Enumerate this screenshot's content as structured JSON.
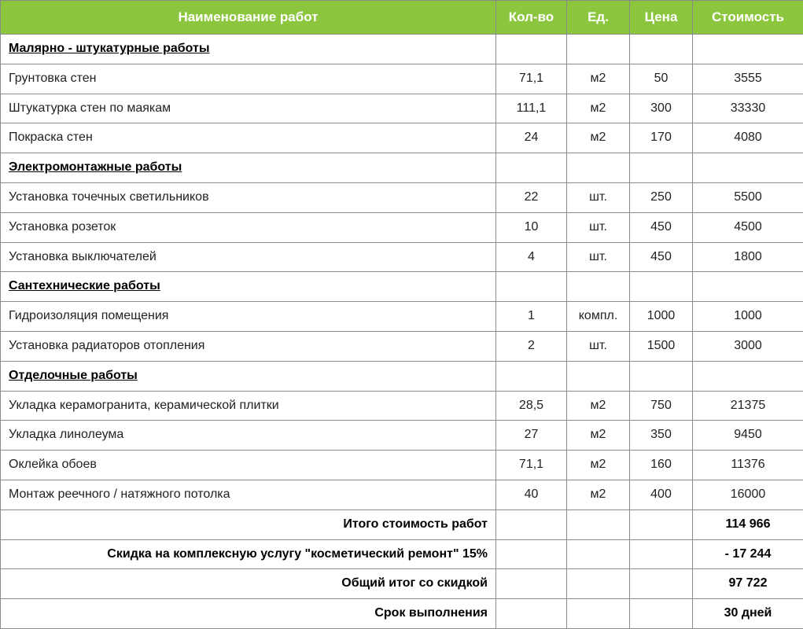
{
  "columns": {
    "name": "Наименование работ",
    "qty": "Кол-во",
    "unit": "Ед.",
    "price": "Цена",
    "cost": "Стоимость"
  },
  "rows": [
    {
      "type": "section",
      "name": "Малярно - штукатурные работы"
    },
    {
      "type": "item",
      "name": "Грунтовка стен",
      "qty": "71,1",
      "unit": "м2",
      "price": "50",
      "cost": "3555"
    },
    {
      "type": "item",
      "name": "Штукатурка стен по маякам",
      "qty": "111,1",
      "unit": "м2",
      "price": "300",
      "cost": "33330"
    },
    {
      "type": "item",
      "name": "Покраска стен",
      "qty": "24",
      "unit": "м2",
      "price": "170",
      "cost": "4080"
    },
    {
      "type": "section",
      "name": "Электромонтажные работы"
    },
    {
      "type": "item",
      "name": "Установка точечных светильников",
      "qty": "22",
      "unit": "шт.",
      "price": "250",
      "cost": "5500"
    },
    {
      "type": "item",
      "name": "Установка розеток",
      "qty": "10",
      "unit": "шт.",
      "price": "450",
      "cost": "4500"
    },
    {
      "type": "item",
      "name": "Установка выключателей",
      "qty": "4",
      "unit": "шт.",
      "price": "450",
      "cost": "1800"
    },
    {
      "type": "section",
      "name": "Сантехнические работы"
    },
    {
      "type": "item",
      "name": "Гидроизоляция помещения",
      "qty": "1",
      "unit": "компл.",
      "price": "1000",
      "cost": "1000"
    },
    {
      "type": "item",
      "name": "Установка радиаторов отопления",
      "qty": "2",
      "unit": "шт.",
      "price": "1500",
      "cost": "3000"
    },
    {
      "type": "section",
      "name": "Отделочные работы"
    },
    {
      "type": "item",
      "name": "Укладка керамогранита, керамической плитки",
      "qty": "28,5",
      "unit": "м2",
      "price": "750",
      "cost": "21375"
    },
    {
      "type": "item",
      "name": "Укладка линолеума",
      "qty": "27",
      "unit": "м2",
      "price": "350",
      "cost": "9450"
    },
    {
      "type": "item",
      "name": "Оклейка обоев",
      "qty": "71,1",
      "unit": "м2",
      "price": "160",
      "cost": "11376"
    },
    {
      "type": "item",
      "name": "Монтаж реечного / натяжного потолка",
      "qty": "40",
      "unit": "м2",
      "price": "400",
      "cost": "16000"
    },
    {
      "type": "summary",
      "name": "Итого стоимость работ",
      "cost": "114 966"
    },
    {
      "type": "summary",
      "name": "Скидка на комплексную услугу \"косметический ремонт\" 15%",
      "cost": "- 17 244",
      "discount": true
    },
    {
      "type": "summary",
      "name": "Общий итог со скидкой",
      "cost": "97 722"
    },
    {
      "type": "summary",
      "name": "Срок выполнения",
      "cost": "30 дней"
    }
  ],
  "colors": {
    "header_bg": "#8cc63f",
    "header_text": "#ffffff",
    "border": "#8a8a8a",
    "text": "#222222",
    "discount": "#e03030"
  }
}
